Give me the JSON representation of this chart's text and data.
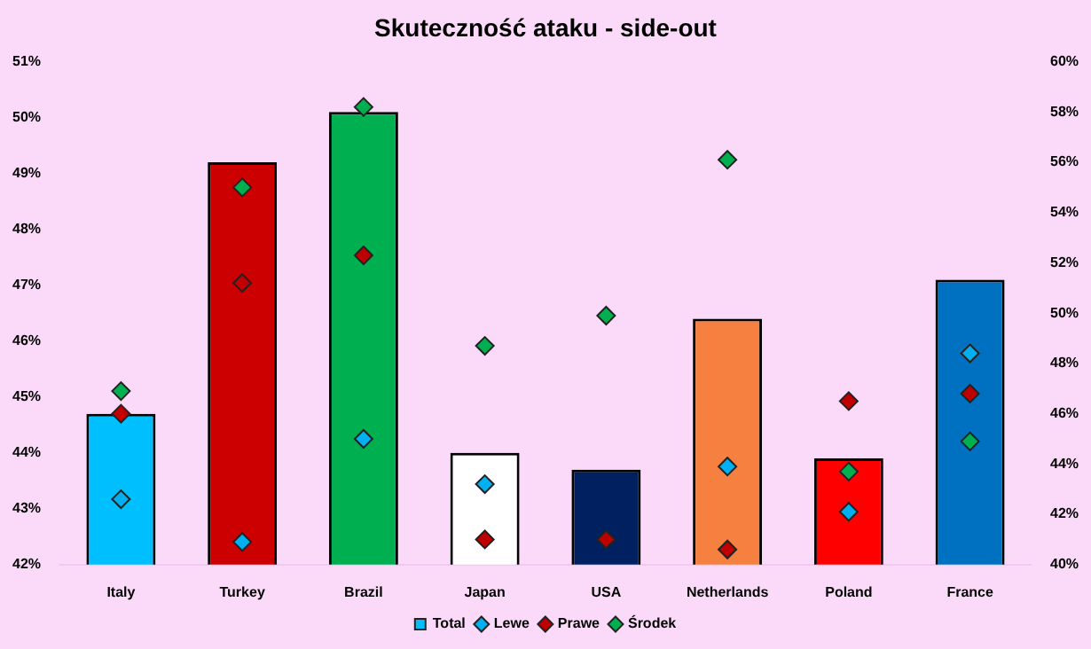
{
  "chart_data": {
    "type": "bar",
    "title": "Skuteczność ataku - side-out",
    "categories": [
      "Italy",
      "Turkey",
      "Brazil",
      "Japan",
      "USA",
      "Netherlands",
      "Poland",
      "France"
    ],
    "series": [
      {
        "name": "Total",
        "color": "#00bfff",
        "colors": [
          "#00bfff",
          "#cc0000",
          "#00b050",
          "#ffffff",
          "#002060",
          "#f58040",
          "#ff0000",
          "#0070c0"
        ],
        "values": [
          44.7,
          49.2,
          50.1,
          44.0,
          43.7,
          46.4,
          43.9,
          47.1
        ]
      },
      {
        "name": "Lewe",
        "type": "scatter",
        "axis": "y2",
        "color": "#00b0f0",
        "values": [
          42.6,
          40.9,
          45.0,
          43.2,
          null,
          43.9,
          42.1,
          48.4
        ]
      },
      {
        "name": "Prawe",
        "type": "scatter",
        "axis": "y2",
        "color": "#c00000",
        "values": [
          46.0,
          51.2,
          52.3,
          41.0,
          41.0,
          40.6,
          46.5,
          46.8
        ]
      },
      {
        "name": "Środek",
        "type": "scatter",
        "axis": "y2",
        "color": "#00b050",
        "values": [
          46.9,
          55.0,
          58.2,
          48.7,
          49.9,
          56.1,
          43.7,
          44.9
        ]
      }
    ],
    "ylim": [
      42,
      51
    ],
    "yticks": [
      {
        "value": 42,
        "label": "42%"
      },
      {
        "value": 43,
        "label": "43%"
      },
      {
        "value": 44,
        "label": "44%"
      },
      {
        "value": 45,
        "label": "45%"
      },
      {
        "value": 46,
        "label": "46%"
      },
      {
        "value": 47,
        "label": "47%"
      },
      {
        "value": 48,
        "label": "48%"
      },
      {
        "value": 49,
        "label": "49%"
      },
      {
        "value": 50,
        "label": "50%"
      },
      {
        "value": 51,
        "label": "51%"
      }
    ],
    "y2lim": [
      40,
      60
    ],
    "y2ticks": [
      {
        "value": 40,
        "label": "40%"
      },
      {
        "value": 42,
        "label": "42%"
      },
      {
        "value": 44,
        "label": "44%"
      },
      {
        "value": 46,
        "label": "46%"
      },
      {
        "value": 48,
        "label": "48%"
      },
      {
        "value": 50,
        "label": "50%"
      },
      {
        "value": 52,
        "label": "52%"
      },
      {
        "value": 54,
        "label": "54%"
      },
      {
        "value": 56,
        "label": "56%"
      },
      {
        "value": 58,
        "label": "58%"
      },
      {
        "value": 60,
        "label": "60%"
      }
    ],
    "marker": "diamond",
    "grid": false,
    "legend": "bottom"
  }
}
